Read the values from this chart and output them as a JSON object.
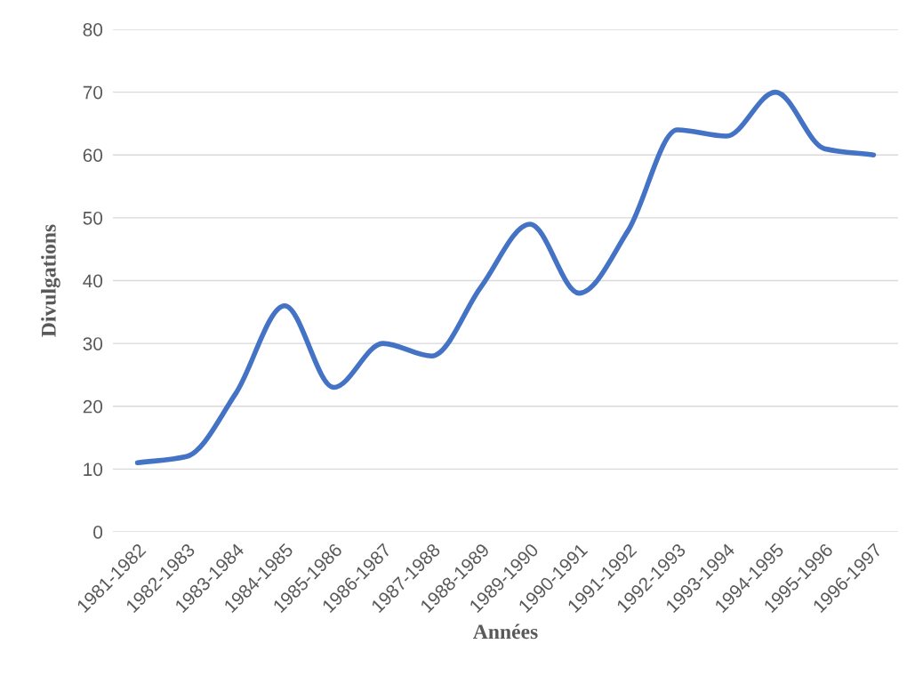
{
  "chart_data": {
    "type": "line",
    "xlabel": "Années",
    "ylabel": "Divulgations",
    "categories": [
      "1981-1982",
      "1982-1983",
      "1983-1984",
      "1984-1985",
      "1985-1986",
      "1986-1987",
      "1987-1988",
      "1988-1989",
      "1989-1990",
      "1990-1991",
      "1991-1992",
      "1992-1993",
      "1993-1994",
      "1994-1995",
      "1995-1996",
      "1996-1997"
    ],
    "series": [
      {
        "color": "#4472c4",
        "values": [
          11,
          12,
          22,
          36,
          23,
          30,
          28,
          39,
          49,
          38,
          48,
          64,
          63,
          70,
          61,
          60
        ]
      }
    ],
    "ylim": [
      0,
      80
    ],
    "yticks": [
      0,
      10,
      20,
      30,
      40,
      50,
      60,
      70,
      80
    ],
    "grid": "y",
    "legend": false,
    "marker": "none",
    "line_style": "solid"
  }
}
